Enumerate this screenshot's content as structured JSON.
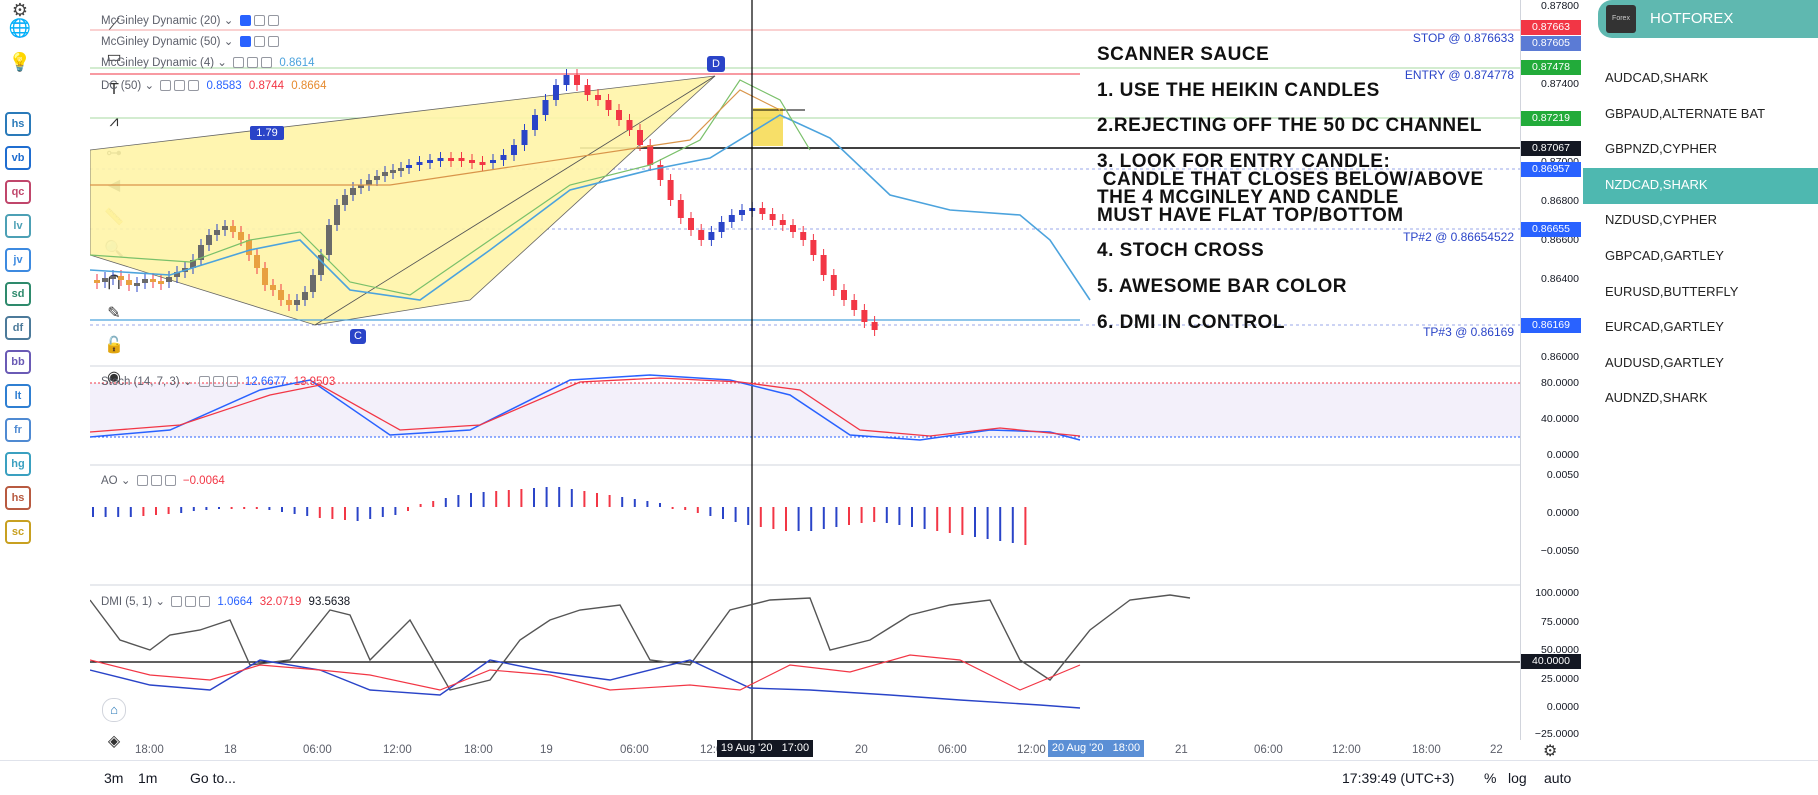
{
  "left_rail": {
    "badges": [
      {
        "label": "hs",
        "color": "#2a7ab9"
      },
      {
        "label": "vb",
        "color": "#1f6dd0"
      },
      {
        "label": "qc",
        "color": "#c0466b"
      },
      {
        "label": "lv",
        "color": "#4ca0b5"
      },
      {
        "label": "jv",
        "color": "#3d8ae0"
      },
      {
        "label": "sd",
        "color": "#2e8a6c"
      },
      {
        "label": "df",
        "color": "#4c7a9a"
      },
      {
        "label": "bb",
        "color": "#6a5ab5"
      },
      {
        "label": "lt",
        "color": "#2f7fd2"
      },
      {
        "label": "fr",
        "color": "#4f8ad2"
      },
      {
        "label": "hg",
        "color": "#3aa0c0"
      },
      {
        "label": "hs",
        "color": "#b85a40"
      },
      {
        "label": "sc",
        "color": "#c8a020"
      }
    ]
  },
  "legends": {
    "mcg20": {
      "name": "McGinley Dynamic (20)"
    },
    "mcg50": {
      "name": "McGinley Dynamic (50)"
    },
    "mcg4": {
      "name": "McGinley Dynamic (4)",
      "value": "0.8614"
    },
    "dc50": {
      "name": "DC (50)",
      "v1": "0.8583",
      "v2": "0.8744",
      "v3": "0.8664"
    },
    "stoch": {
      "name": "Stoch (14, 7, 3)",
      "v1": "12.6677",
      "v2": "13.9503"
    },
    "ao": {
      "name": "AO",
      "v1": "−0.0064"
    },
    "dmi": {
      "name": "DMI (5, 1)",
      "v1": "1.0664",
      "v2": "32.0719",
      "v3": "93.5638"
    }
  },
  "pattern": {
    "label_d": "D",
    "label_c": "C",
    "ratio": "1.79"
  },
  "scanner": {
    "title": "SCANNER SAUCE",
    "l1": "1. USE THE HEIKIN CANDLES",
    "l2": "2.REJECTING OFF THE 50 DC CHANNEL",
    "l3a": "3. LOOK FOR ENTRY CANDLE:",
    "l3b": " CANDLE THAT CLOSES BELOW/ABOVE",
    "l3c": "THE 4 MCGINLEY AND CANDLE",
    "l3d": "MUST HAVE FLAT TOP/BOTTOM",
    "l4": "4. STOCH CROSS",
    "l5": "5. AWESOME BAR COLOR",
    "l6": "6. DMI IN CONTROL"
  },
  "levels": {
    "stop": "STOP @ 0.876633",
    "entry": "ENTRY @ 0.874778",
    "tp2": "TP#2 @ 0.86654522",
    "tp3": "TP#3 @ 0.86169"
  },
  "price_axis": {
    "main": [
      "0.87800",
      "0.87400",
      "0.87000",
      "0.86800",
      "0.86600",
      "0.86400",
      "0.86000"
    ],
    "tags": [
      {
        "text": "0.87663",
        "color": "#f23645"
      },
      {
        "text": "0.87605",
        "color": "#5b7bd5"
      },
      {
        "text": "0.87478",
        "color": "#22ab3a"
      },
      {
        "text": "0.87219",
        "color": "#22ab3a"
      },
      {
        "text": "0.87067",
        "color": "#131722"
      },
      {
        "text": "0.86957",
        "color": "#2962ff"
      },
      {
        "text": "0.86655",
        "color": "#2962ff"
      },
      {
        "text": "0.86169",
        "color": "#2962ff"
      }
    ],
    "stoch": [
      "80.0000",
      "40.0000",
      "0.0000"
    ],
    "ao": [
      "0.0050",
      "0.0000",
      "−0.0050"
    ],
    "dmi": [
      "100.0000",
      "75.0000",
      "50.0000",
      "25.0000",
      "0.0000",
      "−25.0000"
    ],
    "dmi_tag": "40.0000"
  },
  "time_axis": {
    "labels": [
      "18:00",
      "18",
      "06:00",
      "12:00",
      "18:00",
      "19",
      "06:00",
      "12:00",
      "20",
      "06:00",
      "12:00",
      "21",
      "06:00",
      "12:00",
      "18:00",
      "22"
    ],
    "cursor": "19 Aug '20   17:00",
    "range": "20 Aug '20   18:00"
  },
  "bottom_bar": {
    "tf1": "3m",
    "tf2": "1m",
    "goto": "Go to...",
    "clock": "17:39:49 (UTC+3)",
    "pct": "%",
    "log": "log",
    "auto": "auto"
  },
  "watchlist": {
    "broker": "HOTFOREX",
    "items": [
      "AUDCAD,SHARK",
      "GBPAUD,ALTERNATE BAT",
      "GBPNZD,CYPHER",
      "NZDCAD,SHARK",
      "NZDUSD,CYPHER",
      "GBPCAD,GARTLEY",
      "EURUSD,BUTTERFLY",
      "EURCAD,GARTLEY",
      "AUDUSD,GARTLEY",
      "AUDNZD,SHARK"
    ],
    "active_index": 3
  }
}
